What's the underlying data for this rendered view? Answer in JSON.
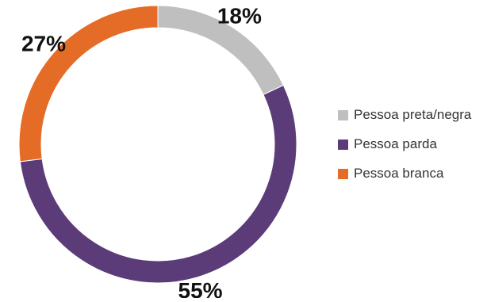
{
  "chart_data": {
    "type": "pie",
    "variant": "donut",
    "title": "",
    "categories": [
      "Pessoa preta/negra",
      "Pessoa parda",
      "Pessoa branca"
    ],
    "values": [
      18,
      55,
      27
    ],
    "value_labels": [
      "18%",
      "55%",
      "27%"
    ],
    "colors": [
      "#bfbfbf",
      "#5b3c79",
      "#e46c26"
    ],
    "start": "12 o'clock, clockwise",
    "legend_position": "right"
  }
}
